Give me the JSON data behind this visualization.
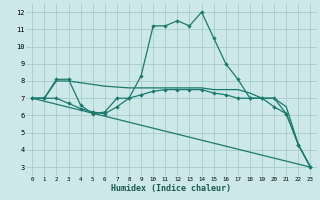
{
  "xlabel": "Humidex (Indice chaleur)",
  "bg_color": "#cce8e8",
  "grid_color": "#aacccc",
  "line_color": "#1a7a6e",
  "xlim": [
    -0.5,
    23.5
  ],
  "ylim": [
    2.5,
    12.5
  ],
  "yticks": [
    3,
    4,
    5,
    6,
    7,
    8,
    9,
    10,
    11,
    12
  ],
  "xticks": [
    0,
    1,
    2,
    3,
    4,
    5,
    6,
    7,
    8,
    9,
    10,
    11,
    12,
    13,
    14,
    15,
    16,
    17,
    18,
    19,
    20,
    21,
    22,
    23
  ],
  "line1": {
    "x": [
      0,
      1,
      2,
      3,
      4,
      5,
      6,
      7,
      8,
      9,
      10,
      11,
      12,
      13,
      14,
      15,
      16,
      17,
      18,
      19,
      20,
      21,
      22,
      23
    ],
    "y": [
      7,
      7,
      8.1,
      8.1,
      6.6,
      6.1,
      6.2,
      7.0,
      7.0,
      8.3,
      11.2,
      11.2,
      11.5,
      11.2,
      12.0,
      10.5,
      9.0,
      8.1,
      7.0,
      7.0,
      7.0,
      6.1,
      4.3,
      3.0
    ]
  },
  "line2": {
    "x": [
      0,
      1,
      2,
      3,
      4,
      5,
      6,
      7,
      8,
      9,
      10,
      11,
      12,
      13,
      14,
      15,
      16,
      17,
      18,
      19,
      20,
      21,
      22,
      23
    ],
    "y": [
      7.0,
      7.0,
      8.0,
      8.0,
      7.9,
      7.8,
      7.7,
      7.65,
      7.6,
      7.6,
      7.6,
      7.6,
      7.6,
      7.6,
      7.6,
      7.5,
      7.5,
      7.5,
      7.3,
      7.0,
      7.0,
      6.5,
      4.3,
      3.0
    ]
  },
  "line3": {
    "x": [
      0,
      1,
      2,
      3,
      4,
      5,
      6,
      7,
      8,
      9,
      10,
      11,
      12,
      13,
      14,
      15,
      16,
      17,
      18,
      19,
      20,
      21,
      22,
      23
    ],
    "y": [
      7.0,
      7.0,
      7.0,
      6.7,
      6.4,
      6.2,
      6.1,
      6.5,
      7.0,
      7.2,
      7.4,
      7.5,
      7.5,
      7.5,
      7.5,
      7.3,
      7.2,
      7.0,
      7.0,
      7.0,
      6.5,
      6.1,
      4.3,
      3.0
    ]
  },
  "line4": {
    "x": [
      0,
      23
    ],
    "y": [
      7.0,
      3.0
    ]
  }
}
